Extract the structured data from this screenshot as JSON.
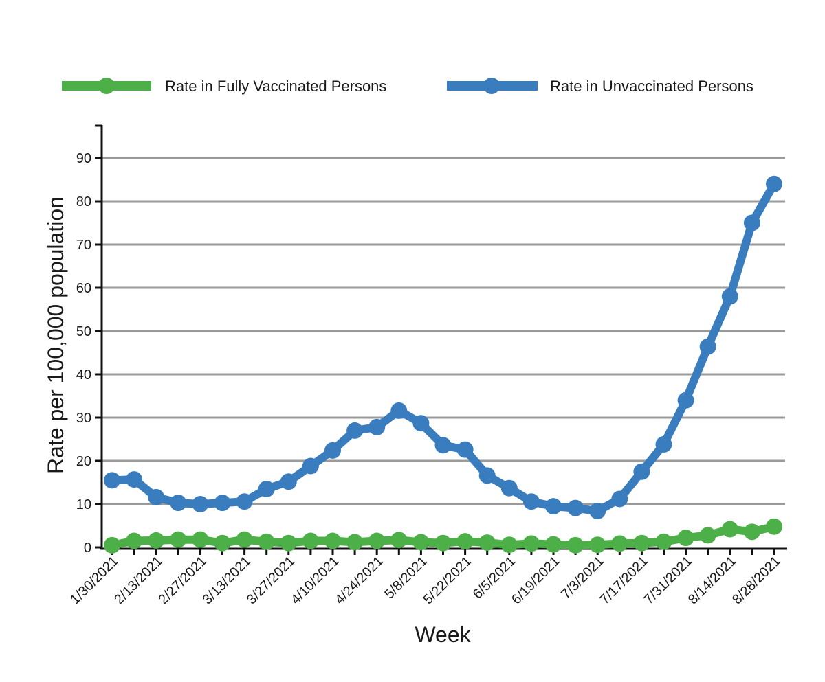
{
  "chart_data": {
    "type": "line",
    "title": "",
    "xlabel": "Week",
    "ylabel": "Rate per 100,000 population",
    "ylim": [
      0,
      90
    ],
    "yticks": [
      0,
      10,
      20,
      30,
      40,
      50,
      60,
      70,
      80,
      90
    ],
    "grid": true,
    "legend_position": "top",
    "x_tick_labels": [
      "1/30/2021",
      "2/13/2021",
      "2/27/2021",
      "3/13/2021",
      "3/27/2021",
      "4/10/2021",
      "4/24/2021",
      "5/8/2021",
      "5/22/2021",
      "6/5/2021",
      "6/19/2021",
      "7/3/2021",
      "7/17/2021",
      "7/31/2021",
      "8/14/2021",
      "8/28/2021"
    ],
    "x": [
      "1/30/2021",
      "2/6/2021",
      "2/13/2021",
      "2/20/2021",
      "2/27/2021",
      "3/6/2021",
      "3/13/2021",
      "3/20/2021",
      "3/27/2021",
      "4/3/2021",
      "4/10/2021",
      "4/17/2021",
      "4/24/2021",
      "5/1/2021",
      "5/8/2021",
      "5/15/2021",
      "5/22/2021",
      "5/29/2021",
      "6/5/2021",
      "6/12/2021",
      "6/19/2021",
      "6/26/2021",
      "7/3/2021",
      "7/10/2021",
      "7/17/2021",
      "7/24/2021",
      "7/31/2021",
      "8/7/2021",
      "8/14/2021",
      "8/21/2021",
      "8/28/2021"
    ],
    "series": [
      {
        "name": "Rate in Fully Vaccinated Persons",
        "color": "#4caf47",
        "values": [
          0.5,
          1.5,
          1.6,
          1.8,
          1.8,
          1.0,
          1.8,
          1.3,
          1.0,
          1.5,
          1.5,
          1.2,
          1.5,
          1.7,
          1.2,
          1.0,
          1.4,
          1.1,
          0.6,
          0.9,
          0.7,
          0.5,
          0.6,
          0.9,
          1.0,
          1.3,
          2.2,
          2.8,
          4.2,
          3.6,
          4.8
        ]
      },
      {
        "name": "Rate in Unvaccinated Persons",
        "color": "#3a7dbf",
        "values": [
          15.5,
          15.7,
          11.6,
          10.3,
          10.0,
          10.3,
          10.6,
          13.5,
          15.2,
          18.8,
          22.4,
          27.0,
          27.8,
          31.6,
          28.7,
          23.6,
          22.6,
          16.6,
          13.7,
          10.6,
          9.5,
          9.1,
          8.4,
          11.2,
          17.5,
          23.8,
          34.0,
          46.4,
          58.0,
          75.0,
          84.0
        ]
      }
    ]
  }
}
